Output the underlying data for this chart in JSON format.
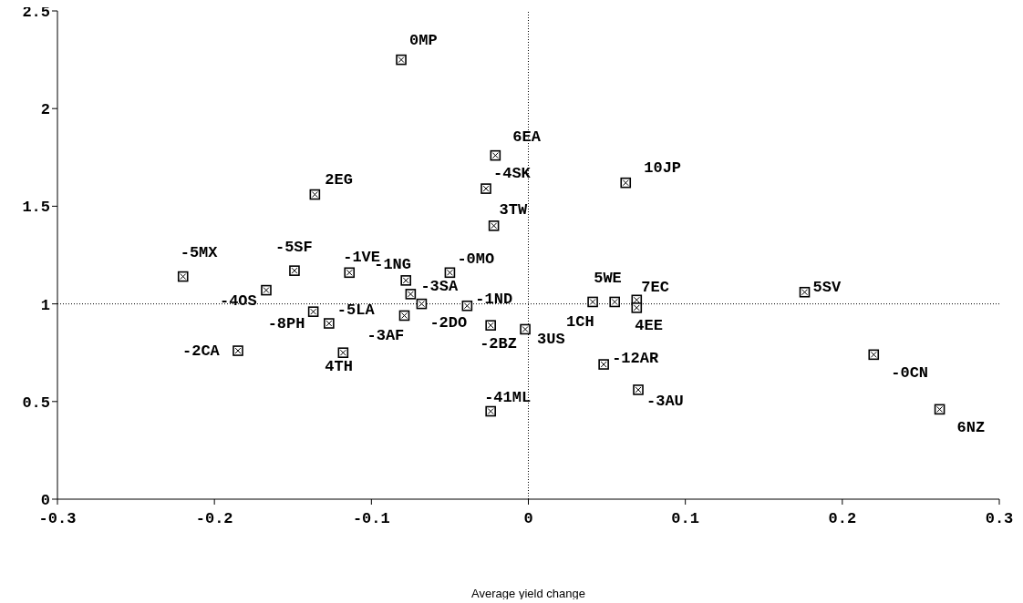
{
  "chart_data": {
    "type": "scatter",
    "xlabel": "Average yield change",
    "xlim": [
      -0.3,
      0.3
    ],
    "xticks": [
      -0.3,
      -0.2,
      -0.1,
      0,
      0.1,
      0.2,
      0.3
    ],
    "ylim": [
      0,
      2.5
    ],
    "yticks": [
      0,
      0.5,
      1,
      1.5,
      2,
      2.5
    ],
    "grid": false,
    "marker": "square",
    "ref_lines": [
      {
        "axis": "y",
        "value": 1,
        "line_style": "dotted"
      },
      {
        "axis": "x",
        "value": 0,
        "line_style": "dotted"
      }
    ],
    "series": [
      {
        "color": "#000000",
        "x": [
          -0.081,
          -0.021,
          -0.027,
          -0.022,
          -0.136,
          0.062,
          -0.22,
          -0.149,
          -0.114,
          -0.078,
          -0.05,
          -0.167,
          -0.075,
          -0.068,
          -0.039,
          -0.137,
          -0.127,
          -0.079,
          -0.024,
          -0.002,
          -0.185,
          -0.118,
          -0.024,
          0.176,
          0.041,
          0.055,
          0.069,
          0.069,
          0.048,
          0.07,
          0.22,
          0.262
        ],
        "values": [
          2.25,
          1.76,
          1.59,
          1.4,
          1.56,
          1.62,
          1.14,
          1.17,
          1.16,
          1.12,
          1.16,
          1.07,
          1.05,
          1.0,
          0.99,
          0.96,
          0.9,
          0.94,
          0.89,
          0.87,
          0.76,
          0.75,
          0.45,
          1.06,
          1.01,
          1.01,
          1.02,
          0.98,
          0.69,
          0.56,
          0.74,
          0.46
        ]
      }
    ],
    "annotations": [
      {
        "text": "0MP",
        "x": -0.081,
        "y": 2.25
      },
      {
        "text": "6EA",
        "x": -0.021,
        "y": 1.76
      },
      {
        "text": "-4SK",
        "x": -0.027,
        "y": 1.59
      },
      {
        "text": "3TW",
        "x": -0.022,
        "y": 1.4
      },
      {
        "text": "2EG",
        "x": -0.136,
        "y": 1.56
      },
      {
        "text": "10JP",
        "x": 0.062,
        "y": 1.62
      },
      {
        "text": "-5MX",
        "x": -0.22,
        "y": 1.14
      },
      {
        "text": "-5SF",
        "x": -0.149,
        "y": 1.17
      },
      {
        "text": "-1VE",
        "x": -0.114,
        "y": 1.16
      },
      {
        "text": "-1NG",
        "x": -0.078,
        "y": 1.12
      },
      {
        "text": "-0MO",
        "x": -0.05,
        "y": 1.16
      },
      {
        "text": "-4OS",
        "x": -0.167,
        "y": 1.07
      },
      {
        "text": "-3SA",
        "x": -0.075,
        "y": 1.05
      },
      {
        "text": "-2DO",
        "x": -0.068,
        "y": 1.0
      },
      {
        "text": "-1ND",
        "x": -0.039,
        "y": 0.99
      },
      {
        "text": "-8PH",
        "x": -0.137,
        "y": 0.96
      },
      {
        "text": "-5LA",
        "x": -0.127,
        "y": 0.9
      },
      {
        "text": "-3AF",
        "x": -0.079,
        "y": 0.94
      },
      {
        "text": "-2BZ",
        "x": -0.024,
        "y": 0.89
      },
      {
        "text": "3US",
        "x": -0.002,
        "y": 0.87
      },
      {
        "text": "-2CA",
        "x": -0.185,
        "y": 0.76
      },
      {
        "text": "4TH",
        "x": -0.118,
        "y": 0.75
      },
      {
        "text": "-41ML",
        "x": -0.024,
        "y": 0.45
      },
      {
        "text": "5SV",
        "x": 0.176,
        "y": 1.06
      },
      {
        "text": "1CH",
        "x": 0.041,
        "y": 1.01
      },
      {
        "text": "5WE",
        "x": 0.055,
        "y": 1.01
      },
      {
        "text": "7EC",
        "x": 0.069,
        "y": 1.02
      },
      {
        "text": "4EE",
        "x": 0.069,
        "y": 0.98
      },
      {
        "text": "-12AR",
        "x": 0.048,
        "y": 0.69
      },
      {
        "text": "-3AU",
        "x": 0.07,
        "y": 0.56
      },
      {
        "text": "-0CN",
        "x": 0.22,
        "y": 0.74
      },
      {
        "text": "6NZ",
        "x": 0.262,
        "y": 0.46
      }
    ]
  }
}
